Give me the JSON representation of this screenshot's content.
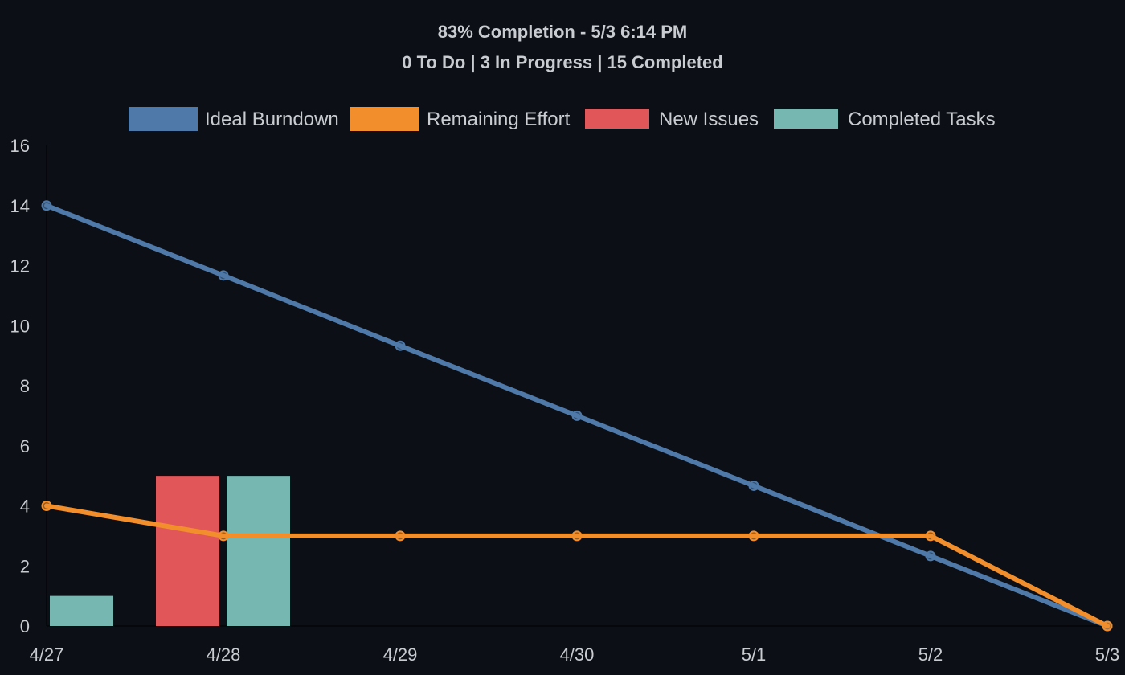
{
  "header": {
    "title": "83% Completion - 5/3 6:14 PM",
    "subtitle": "0 To Do | 3 In Progress | 15 Completed"
  },
  "legend": {
    "placement": "top-center",
    "items": [
      {
        "label": "Ideal Burndown",
        "color": "#4f79a8"
      },
      {
        "label": "Remaining Effort",
        "color": "#f28e2b"
      },
      {
        "label": "New Issues",
        "color": "#e15759"
      },
      {
        "label": "Completed Tasks",
        "color": "#76b7b2"
      }
    ]
  },
  "chart_data": {
    "type": "bar",
    "title": "83% Completion - 5/3 6:14 PM",
    "subtitle": "0 To Do | 3 In Progress | 15 Completed",
    "xlabel": "",
    "ylabel": "",
    "categories": [
      "4/27",
      "4/28",
      "4/29",
      "4/30",
      "5/1",
      "5/2",
      "5/3"
    ],
    "ylim": [
      0,
      16
    ],
    "yticks": [
      "0",
      "2",
      "4",
      "6",
      "8",
      "10",
      "12",
      "14",
      "16"
    ],
    "grid": false,
    "legend_position": "top-center",
    "line_series": [
      {
        "name": "Ideal Burndown",
        "color": "#4f79a8",
        "values": [
          14,
          11.67,
          9.33,
          7,
          4.67,
          2.33,
          0
        ]
      },
      {
        "name": "Remaining Effort",
        "color": "#f28e2b",
        "values": [
          4,
          3,
          3,
          3,
          3,
          3,
          0
        ]
      }
    ],
    "bar_series": [
      {
        "name": "New Issues",
        "color": "#e15759",
        "values": [
          0,
          5,
          0,
          0,
          0,
          0,
          0
        ]
      },
      {
        "name": "Completed Tasks",
        "color": "#76b7b2",
        "values": [
          1,
          5,
          0,
          0,
          0,
          0,
          0
        ]
      }
    ]
  }
}
